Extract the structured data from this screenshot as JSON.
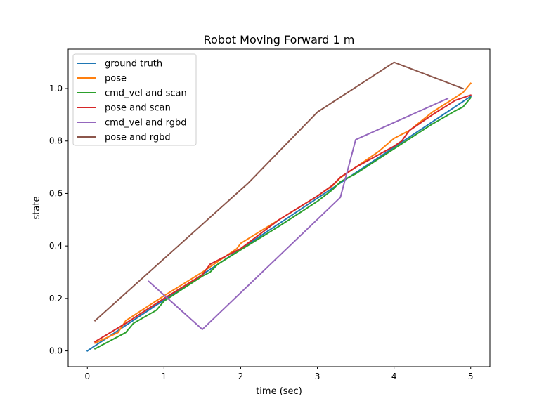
{
  "chart_data": {
    "type": "line",
    "title": "Robot Moving Forward 1 m",
    "xlabel": "time (sec)",
    "ylabel": "state",
    "xlim": [
      -0.25,
      5.25
    ],
    "ylim": [
      -0.06,
      1.15
    ],
    "xticks": [
      0,
      1,
      2,
      3,
      4,
      5
    ],
    "xtick_labels": [
      "0",
      "1",
      "2",
      "3",
      "4",
      "5"
    ],
    "yticks": [
      0.0,
      0.2,
      0.4,
      0.6,
      0.8,
      1.0
    ],
    "ytick_labels": [
      "0.0",
      "0.2",
      "0.4",
      "0.6",
      "0.8",
      "1.0"
    ],
    "grid": false,
    "legend_position": "top-left",
    "series": [
      {
        "name": "ground truth",
        "color": "#1f77b4",
        "x": [
          0.0,
          0.5,
          1.0,
          1.5,
          2.0,
          2.5,
          3.0,
          3.5,
          4.0,
          4.5,
          5.0
        ],
        "y": [
          0.0,
          0.097,
          0.194,
          0.291,
          0.388,
          0.485,
          0.582,
          0.679,
          0.776,
          0.873,
          0.97
        ]
      },
      {
        "name": "pose",
        "color": "#ff7f0e",
        "x": [
          0.1,
          0.4,
          0.5,
          1.0,
          1.5,
          1.95,
          2.0,
          2.5,
          3.0,
          3.2,
          3.3,
          3.8,
          4.0,
          4.2,
          4.5,
          4.9,
          5.0
        ],
        "y": [
          0.03,
          0.07,
          0.115,
          0.21,
          0.3,
          0.39,
          0.41,
          0.5,
          0.59,
          0.63,
          0.66,
          0.76,
          0.81,
          0.84,
          0.91,
          0.985,
          1.02
        ]
      },
      {
        "name": "cmd_vel and scan",
        "color": "#2ca02c",
        "x": [
          0.1,
          0.5,
          0.6,
          0.9,
          1.0,
          1.5,
          1.6,
          1.7,
          2.0,
          2.5,
          3.0,
          3.2,
          3.3,
          3.5,
          4.0,
          4.5,
          4.8,
          4.9,
          5.0
        ],
        "y": [
          0.008,
          0.07,
          0.105,
          0.155,
          0.19,
          0.285,
          0.3,
          0.33,
          0.385,
          0.475,
          0.57,
          0.615,
          0.645,
          0.675,
          0.77,
          0.865,
          0.915,
          0.93,
          0.965
        ]
      },
      {
        "name": "pose and scan",
        "color": "#d62728",
        "x": [
          0.1,
          0.5,
          1.0,
          1.5,
          1.6,
          2.0,
          2.5,
          3.0,
          3.2,
          3.3,
          3.5,
          4.0,
          4.1,
          4.2,
          4.5,
          4.8,
          4.9,
          5.0
        ],
        "y": [
          0.035,
          0.105,
          0.2,
          0.29,
          0.33,
          0.39,
          0.5,
          0.59,
          0.632,
          0.662,
          0.7,
          0.78,
          0.8,
          0.84,
          0.9,
          0.955,
          0.965,
          0.975
        ]
      },
      {
        "name": "cmd_vel and rgbd",
        "color": "#9467bd",
        "x": [
          0.8,
          1.5,
          3.3,
          3.5,
          4.7
        ],
        "y": [
          0.265,
          0.082,
          0.585,
          0.805,
          0.962
        ]
      },
      {
        "name": "pose and rgbd",
        "color": "#8c564b",
        "x": [
          0.1,
          2.1,
          3.0,
          4.0,
          4.9
        ],
        "y": [
          0.115,
          0.64,
          0.91,
          1.1,
          1.0
        ]
      }
    ]
  }
}
